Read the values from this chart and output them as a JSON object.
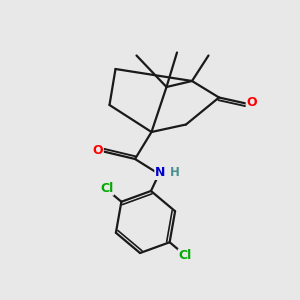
{
  "background_color": "#e8e8e8",
  "bond_color": "#1a1a1a",
  "bond_width": 1.6,
  "atom_colors": {
    "O": "#ff0000",
    "N": "#0000cc",
    "H": "#4a9090",
    "Cl": "#00aa00",
    "C": "#1a1a1a"
  },
  "figsize": [
    3.0,
    3.0
  ],
  "dpi": 100
}
